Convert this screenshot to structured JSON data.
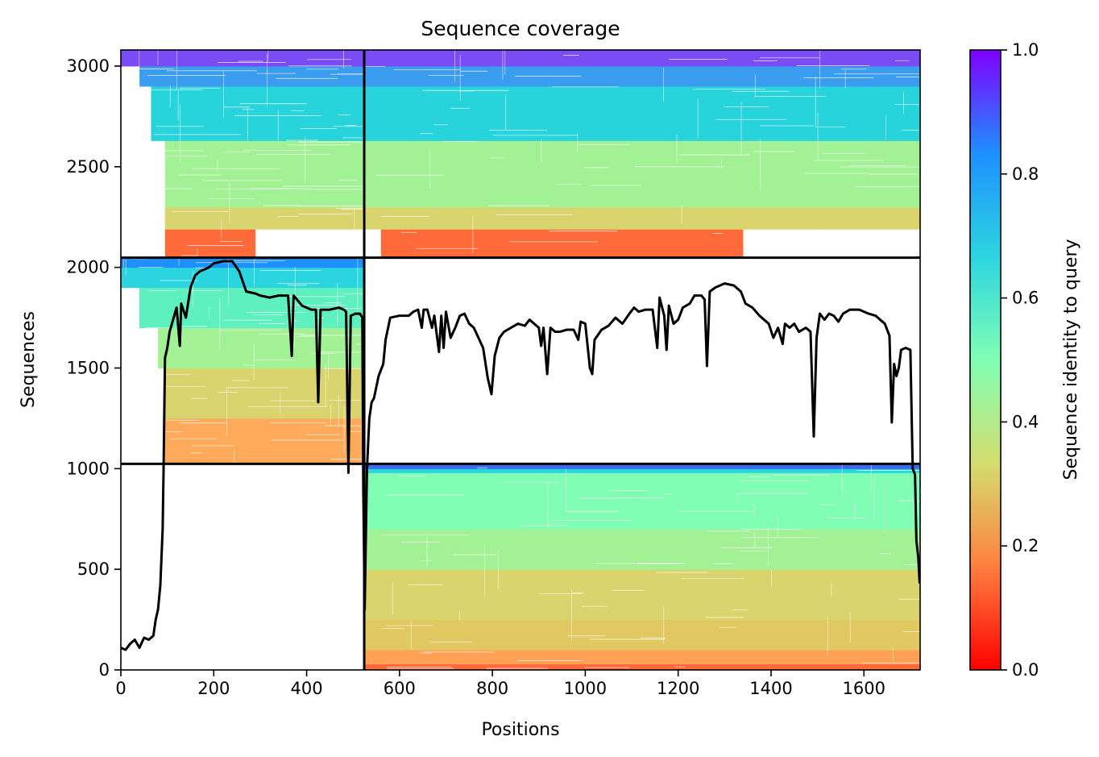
{
  "chart_data": {
    "type": "heatmap",
    "title": "Sequence coverage",
    "xlabel": "Positions",
    "ylabel": "Sequences",
    "xlim": [
      0,
      1721
    ],
    "ylim": [
      0,
      3080
    ],
    "xticks": [
      0,
      200,
      400,
      600,
      800,
      1000,
      1200,
      1400,
      1600
    ],
    "yticks": [
      0,
      500,
      1000,
      1500,
      2000,
      2500,
      3000
    ],
    "grid": false,
    "colormap": "rainbow_r",
    "colorbar": {
      "label": "Sequence identity to query",
      "range": [
        0.0,
        1.0
      ],
      "ticks": [
        "0.0",
        "0.2",
        "0.4",
        "0.6",
        "0.8",
        "1.0"
      ],
      "gradient": [
        "#ff0000",
        "#ff7f3f",
        "#d4dd6e",
        "#80ffb4",
        "#2bd5e0",
        "#1e90ff",
        "#7f00ff"
      ]
    },
    "segment_boundaries": {
      "x_division": 524,
      "y_divisions": [
        1024,
        2048
      ]
    },
    "blocks": [
      {
        "name": "top-left",
        "x": [
          0,
          524
        ],
        "y": [
          2048,
          3080
        ],
        "bands": [
          {
            "y": [
              2048,
              2190
            ],
            "color": "#ff6a3a",
            "x": [
              95,
              290
            ]
          },
          {
            "y": [
              2190,
              2300
            ],
            "color": "#d9d46d",
            "x": [
              95,
              524
            ]
          },
          {
            "y": [
              2300,
              2630
            ],
            "color": "#a2f295",
            "x": [
              95,
              524
            ]
          },
          {
            "y": [
              2630,
              2900
            ],
            "color": "#27d4dc",
            "x": [
              65,
              524
            ]
          },
          {
            "y": [
              2900,
              3000
            ],
            "color": "#3a9df0",
            "x": [
              40,
              524
            ]
          },
          {
            "y": [
              3000,
              3080
            ],
            "color": "#7a4cf6",
            "x": [
              0,
              524
            ]
          }
        ]
      },
      {
        "name": "top-right",
        "x": [
          524,
          1721
        ],
        "y": [
          2048,
          3080
        ],
        "bands": [
          {
            "y": [
              2048,
              2190
            ],
            "color": "#ff6a3a",
            "x": [
              560,
              1340
            ]
          },
          {
            "y": [
              2190,
              2300
            ],
            "color": "#d9d46d",
            "x": [
              524,
              1721
            ]
          },
          {
            "y": [
              2300,
              2630
            ],
            "color": "#a2f295",
            "x": [
              524,
              1721
            ]
          },
          {
            "y": [
              2630,
              2900
            ],
            "color": "#27d4dc",
            "x": [
              524,
              1721
            ]
          },
          {
            "y": [
              2900,
              3000
            ],
            "color": "#3a9df0",
            "x": [
              524,
              1721
            ]
          },
          {
            "y": [
              3000,
              3080
            ],
            "color": "#7a4cf6",
            "x": [
              524,
              1721
            ]
          }
        ]
      },
      {
        "name": "middle-left",
        "x": [
          0,
          524
        ],
        "y": [
          1024,
          2048
        ],
        "bands": [
          {
            "y": [
              1024,
              1250
            ],
            "color": "#ffaa5a",
            "x": [
              95,
              524
            ]
          },
          {
            "y": [
              1250,
              1500
            ],
            "color": "#d9d46d",
            "x": [
              95,
              524
            ]
          },
          {
            "y": [
              1500,
              1700
            ],
            "color": "#a2f295",
            "x": [
              80,
              524
            ]
          },
          {
            "y": [
              1700,
              1900
            ],
            "color": "#5ff0c0",
            "x": [
              40,
              524
            ]
          },
          {
            "y": [
              1900,
              2000
            ],
            "color": "#2bd5e0",
            "x": [
              0,
              524
            ]
          },
          {
            "y": [
              2000,
              2048
            ],
            "color": "#1e90ff",
            "x": [
              0,
              524
            ]
          }
        ]
      },
      {
        "name": "bottom-right",
        "x": [
          524,
          1721
        ],
        "y": [
          0,
          1024
        ],
        "bands": [
          {
            "y": [
              0,
              30
            ],
            "color": "#ff6a3a",
            "x": [
              524,
              1721
            ]
          },
          {
            "y": [
              30,
              100
            ],
            "color": "#ffa055",
            "x": [
              524,
              1721
            ]
          },
          {
            "y": [
              100,
              250
            ],
            "color": "#e2c860",
            "x": [
              524,
              1721
            ]
          },
          {
            "y": [
              250,
              500
            ],
            "color": "#d9d46d",
            "x": [
              524,
              1721
            ]
          },
          {
            "y": [
              500,
              700
            ],
            "color": "#a2f295",
            "x": [
              524,
              1721
            ]
          },
          {
            "y": [
              700,
              980
            ],
            "color": "#80ffb4",
            "x": [
              524,
              1721
            ]
          },
          {
            "y": [
              980,
              1000
            ],
            "color": "#2bd5e0",
            "x": [
              524,
              1721
            ]
          },
          {
            "y": [
              1000,
              1024
            ],
            "color": "#3a6cf0",
            "x": [
              524,
              1721
            ]
          }
        ]
      }
    ],
    "coverage_line": {
      "color": "#000000",
      "points": [
        [
          0,
          110
        ],
        [
          10,
          100
        ],
        [
          20,
          130
        ],
        [
          30,
          150
        ],
        [
          40,
          110
        ],
        [
          50,
          160
        ],
        [
          60,
          150
        ],
        [
          70,
          170
        ],
        [
          75,
          250
        ],
        [
          80,
          300
        ],
        [
          85,
          420
        ],
        [
          90,
          700
        ],
        [
          92,
          1000
        ],
        [
          95,
          1550
        ],
        [
          100,
          1600
        ],
        [
          105,
          1680
        ],
        [
          110,
          1720
        ],
        [
          120,
          1800
        ],
        [
          127,
          1610
        ],
        [
          130,
          1820
        ],
        [
          140,
          1750
        ],
        [
          150,
          1900
        ],
        [
          160,
          1960
        ],
        [
          170,
          1980
        ],
        [
          190,
          2000
        ],
        [
          200,
          2020
        ],
        [
          220,
          2030
        ],
        [
          240,
          2030
        ],
        [
          255,
          1980
        ],
        [
          270,
          1880
        ],
        [
          290,
          1870
        ],
        [
          300,
          1860
        ],
        [
          320,
          1850
        ],
        [
          340,
          1860
        ],
        [
          360,
          1860
        ],
        [
          368,
          1560
        ],
        [
          372,
          1860
        ],
        [
          390,
          1810
        ],
        [
          410,
          1790
        ],
        [
          420,
          1790
        ],
        [
          425,
          1330
        ],
        [
          430,
          1790
        ],
        [
          450,
          1790
        ],
        [
          470,
          1800
        ],
        [
          480,
          1790
        ],
        [
          485,
          1780
        ],
        [
          490,
          980
        ],
        [
          495,
          1760
        ],
        [
          505,
          1770
        ],
        [
          515,
          1770
        ],
        [
          520,
          1750
        ],
        [
          522,
          900
        ],
        [
          525,
          300
        ],
        [
          530,
          1000
        ],
        [
          535,
          1250
        ],
        [
          540,
          1330
        ],
        [
          545,
          1350
        ],
        [
          555,
          1460
        ],
        [
          565,
          1520
        ],
        [
          570,
          1640
        ],
        [
          580,
          1750
        ],
        [
          600,
          1760
        ],
        [
          620,
          1760
        ],
        [
          630,
          1780
        ],
        [
          640,
          1790
        ],
        [
          648,
          1700
        ],
        [
          652,
          1790
        ],
        [
          660,
          1790
        ],
        [
          670,
          1700
        ],
        [
          675,
          1760
        ],
        [
          685,
          1580
        ],
        [
          690,
          1760
        ],
        [
          695,
          1600
        ],
        [
          700,
          1780
        ],
        [
          710,
          1650
        ],
        [
          720,
          1700
        ],
        [
          730,
          1760
        ],
        [
          740,
          1770
        ],
        [
          750,
          1720
        ],
        [
          760,
          1700
        ],
        [
          770,
          1650
        ],
        [
          780,
          1600
        ],
        [
          790,
          1450
        ],
        [
          798,
          1370
        ],
        [
          805,
          1560
        ],
        [
          815,
          1650
        ],
        [
          825,
          1680
        ],
        [
          840,
          1700
        ],
        [
          855,
          1720
        ],
        [
          870,
          1710
        ],
        [
          880,
          1740
        ],
        [
          890,
          1720
        ],
        [
          900,
          1700
        ],
        [
          905,
          1610
        ],
        [
          910,
          1700
        ],
        [
          918,
          1470
        ],
        [
          925,
          1700
        ],
        [
          935,
          1680
        ],
        [
          945,
          1680
        ],
        [
          960,
          1690
        ],
        [
          975,
          1690
        ],
        [
          985,
          1640
        ],
        [
          990,
          1730
        ],
        [
          1000,
          1720
        ],
        [
          1010,
          1500
        ],
        [
          1015,
          1470
        ],
        [
          1020,
          1640
        ],
        [
          1035,
          1690
        ],
        [
          1050,
          1710
        ],
        [
          1065,
          1750
        ],
        [
          1080,
          1720
        ],
        [
          1095,
          1770
        ],
        [
          1105,
          1800
        ],
        [
          1115,
          1780
        ],
        [
          1130,
          1790
        ],
        [
          1145,
          1790
        ],
        [
          1155,
          1600
        ],
        [
          1160,
          1850
        ],
        [
          1170,
          1760
        ],
        [
          1175,
          1590
        ],
        [
          1180,
          1810
        ],
        [
          1190,
          1720
        ],
        [
          1200,
          1740
        ],
        [
          1210,
          1800
        ],
        [
          1225,
          1820
        ],
        [
          1235,
          1860
        ],
        [
          1250,
          1860
        ],
        [
          1257,
          1840
        ],
        [
          1262,
          1510
        ],
        [
          1268,
          1880
        ],
        [
          1280,
          1900
        ],
        [
          1300,
          1920
        ],
        [
          1320,
          1910
        ],
        [
          1335,
          1880
        ],
        [
          1345,
          1820
        ],
        [
          1360,
          1800
        ],
        [
          1375,
          1760
        ],
        [
          1385,
          1740
        ],
        [
          1395,
          1720
        ],
        [
          1405,
          1650
        ],
        [
          1415,
          1700
        ],
        [
          1425,
          1620
        ],
        [
          1430,
          1720
        ],
        [
          1440,
          1700
        ],
        [
          1450,
          1720
        ],
        [
          1460,
          1680
        ],
        [
          1475,
          1700
        ],
        [
          1485,
          1680
        ],
        [
          1492,
          1160
        ],
        [
          1498,
          1650
        ],
        [
          1505,
          1770
        ],
        [
          1515,
          1740
        ],
        [
          1525,
          1770
        ],
        [
          1535,
          1760
        ],
        [
          1545,
          1730
        ],
        [
          1555,
          1770
        ],
        [
          1570,
          1790
        ],
        [
          1590,
          1790
        ],
        [
          1610,
          1770
        ],
        [
          1625,
          1760
        ],
        [
          1635,
          1740
        ],
        [
          1645,
          1720
        ],
        [
          1655,
          1660
        ],
        [
          1660,
          1230
        ],
        [
          1665,
          1520
        ],
        [
          1670,
          1460
        ],
        [
          1675,
          1500
        ],
        [
          1680,
          1590
        ],
        [
          1690,
          1600
        ],
        [
          1700,
          1590
        ],
        [
          1705,
          1000
        ],
        [
          1710,
          970
        ],
        [
          1713,
          640
        ],
        [
          1717,
          560
        ],
        [
          1720,
          430
        ]
      ]
    }
  }
}
